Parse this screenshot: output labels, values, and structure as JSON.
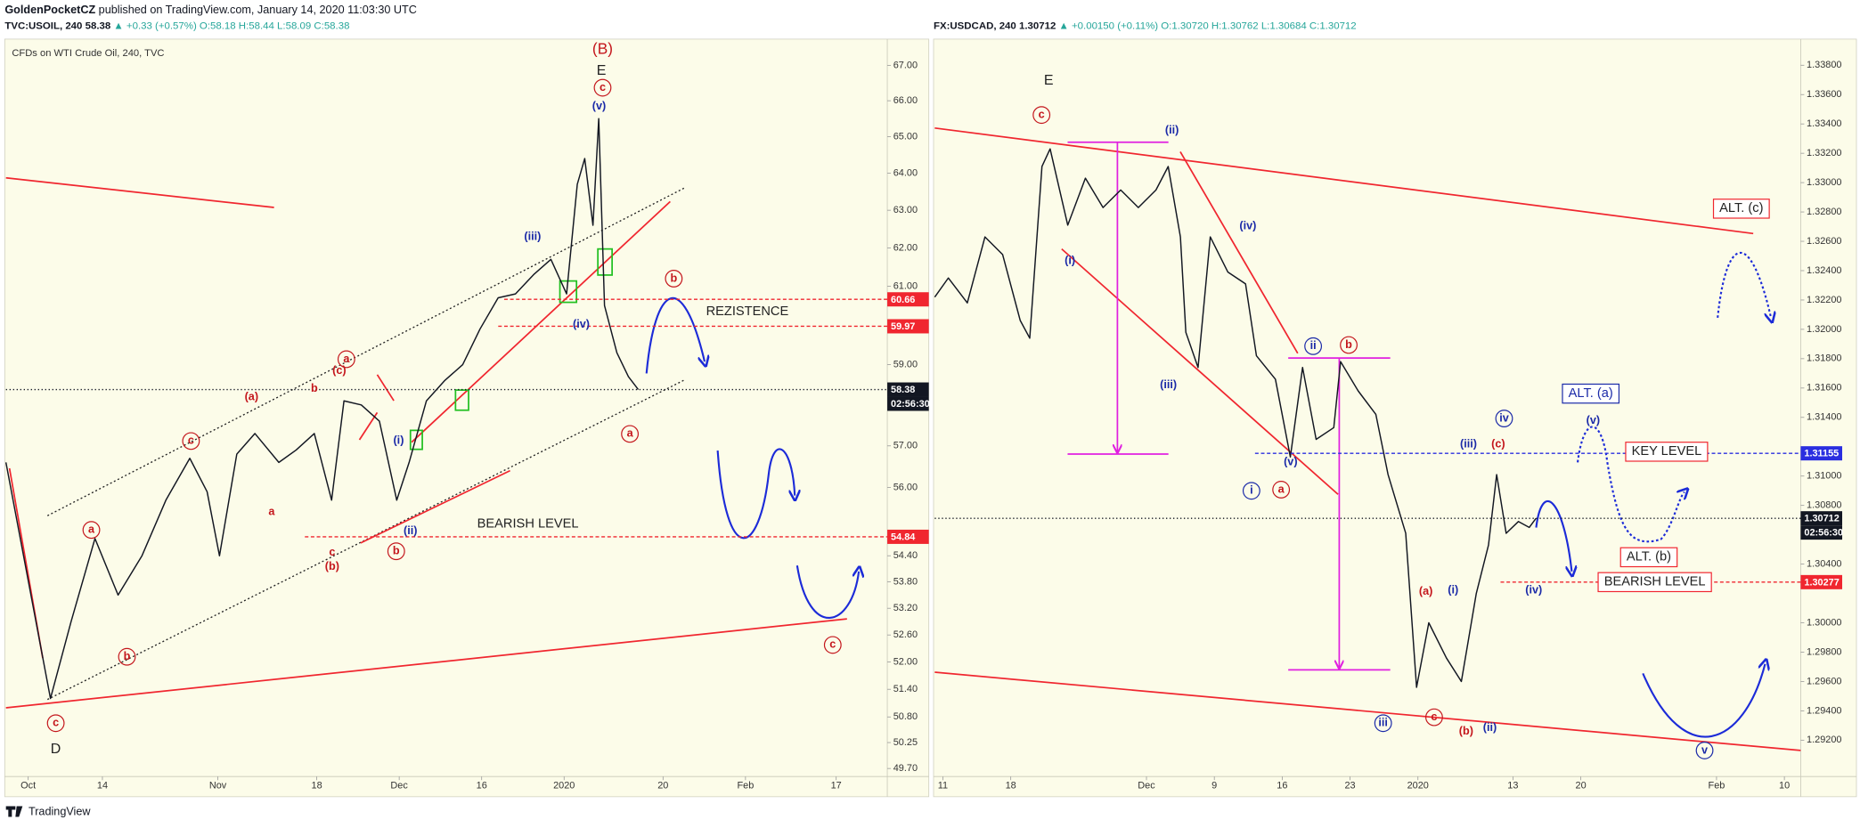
{
  "header": {
    "author": "GoldenPocketCZ",
    "published": "published on TradingView.com, January 14, 2020 11:03:30 UTC",
    "footer": "TradingView"
  },
  "chart_data": [
    {
      "type": "line",
      "symbol": "TVC:USOIL, 240",
      "last": "58.38",
      "change": "▲ +0.33 (+0.57%)",
      "ohlc": "O:58.18 H:58.44 L:58.09 C:58.38",
      "subtitle": "CFDs on WTI Crude Oil, 240, TVC",
      "log": true,
      "xlim": [
        -2.7,
        104.2
      ],
      "xticks": [
        {
          "value": 0,
          "label": "Oct"
        },
        {
          "value": 9,
          "label": "14"
        },
        {
          "value": 23,
          "label": "Nov"
        },
        {
          "value": 35,
          "label": "18"
        },
        {
          "value": 45,
          "label": "Dec"
        },
        {
          "value": 55,
          "label": "16"
        },
        {
          "value": 65,
          "label": "2020"
        },
        {
          "value": 77,
          "label": "20"
        },
        {
          "value": 87,
          "label": "Feb"
        },
        {
          "value": 98,
          "label": "17"
        }
      ],
      "ylim": [
        49.53,
        67.75
      ],
      "yticks": [
        {
          "value": 67,
          "label": "67.00"
        },
        {
          "value": 66,
          "label": "66.00"
        },
        {
          "value": 65,
          "label": "65.00"
        },
        {
          "value": 64,
          "label": "64.00"
        },
        {
          "value": 63,
          "label": "63.00"
        },
        {
          "value": 62,
          "label": "62.00"
        },
        {
          "value": 61,
          "label": "61.00"
        },
        {
          "value": 59,
          "label": "59.00"
        },
        {
          "value": 57,
          "label": "57.00"
        },
        {
          "value": 56,
          "label": "56.00"
        },
        {
          "value": 54.4,
          "label": "54.40"
        },
        {
          "value": 53.8,
          "label": "53.80"
        },
        {
          "value": 53.2,
          "label": "53.20"
        },
        {
          "value": 52.6,
          "label": "52.60"
        },
        {
          "value": 52,
          "label": "52.00"
        },
        {
          "value": 51.4,
          "label": "51.40"
        },
        {
          "value": 50.8,
          "label": "50.80"
        },
        {
          "value": 50.25,
          "label": "50.25"
        },
        {
          "value": 49.7,
          "label": "49.70"
        }
      ],
      "series": [
        {
          "color": "#131722",
          "x": [
            -2.7,
            2.7,
            5.2,
            8.1,
            10.9,
            13.8,
            16.7,
            19.6,
            21.7,
            23.2,
            25.3,
            27.5,
            30.4,
            32.5,
            34.7,
            36.8,
            38.3,
            40.4,
            42.6,
            44.7,
            46.2,
            48.3,
            50.5,
            52.7,
            54.8,
            57.0,
            59.1,
            61.3,
            63.4,
            65.3,
            66.6,
            67.5,
            68.5,
            69.2,
            69.9,
            71.4,
            72.8,
            74.0
          ],
          "values": [
            56.6,
            51.2,
            52.9,
            54.8,
            53.5,
            54.4,
            55.7,
            56.7,
            55.9,
            54.4,
            56.8,
            57.3,
            56.6,
            56.9,
            57.3,
            55.7,
            58.1,
            58.0,
            57.6,
            55.7,
            56.6,
            58.1,
            58.6,
            59.0,
            59.9,
            60.7,
            60.8,
            61.3,
            61.7,
            60.8,
            63.7,
            64.4,
            62.6,
            65.5,
            60.5,
            59.3,
            58.7,
            58.38
          ]
        }
      ],
      "price_tags": [
        {
          "value": 60.66,
          "color": "#f0262f"
        },
        {
          "value": 59.97,
          "color": "#f0262f"
        },
        {
          "value": 58.38,
          "color": "#131722"
        },
        {
          "value": 54.84,
          "color": "#f0262f"
        }
      ],
      "countdown": "02:56:30",
      "annotations": [
        "(B)",
        "E",
        "c",
        "(v)",
        "(iii)",
        "(iv)",
        "b",
        "a",
        "REZISTENCE",
        "BEARISH LEVEL",
        "(i)",
        "(ii)",
        "b",
        "a",
        "(c)",
        "b",
        "(a)",
        "c",
        "a",
        "a",
        "b",
        "c",
        "(b)",
        "c",
        "D",
        "c"
      ]
    },
    {
      "type": "line",
      "symbol": "FX:USDCAD, 240",
      "last": "1.30712",
      "change": "▲ +0.00150 (+0.11%)",
      "ohlc": "O:1.30720 H:1.30762 L:1.30684 C:1.30712",
      "log": false,
      "xlim": [
        -0.6,
        63.2
      ],
      "xticks": [
        {
          "value": 0,
          "label": "11"
        },
        {
          "value": 5,
          "label": "18"
        },
        {
          "value": 15,
          "label": "Dec"
        },
        {
          "value": 20,
          "label": "9"
        },
        {
          "value": 25,
          "label": "16"
        },
        {
          "value": 30,
          "label": "23"
        },
        {
          "value": 35,
          "label": "2020"
        },
        {
          "value": 42,
          "label": "13"
        },
        {
          "value": 47,
          "label": "20"
        },
        {
          "value": 57,
          "label": "Feb"
        },
        {
          "value": 62,
          "label": "10"
        }
      ],
      "ylim": [
        1.28952,
        1.33978
      ],
      "yticks": [
        {
          "value": 1.338,
          "label": "1.33800"
        },
        {
          "value": 1.336,
          "label": "1.33600"
        },
        {
          "value": 1.334,
          "label": "1.33400"
        },
        {
          "value": 1.332,
          "label": "1.33200"
        },
        {
          "value": 1.33,
          "label": "1.33000"
        },
        {
          "value": 1.328,
          "label": "1.32800"
        },
        {
          "value": 1.326,
          "label": "1.32600"
        },
        {
          "value": 1.324,
          "label": "1.32400"
        },
        {
          "value": 1.322,
          "label": "1.32200"
        },
        {
          "value": 1.32,
          "label": "1.32000"
        },
        {
          "value": 1.318,
          "label": "1.31800"
        },
        {
          "value": 1.316,
          "label": "1.31600"
        },
        {
          "value": 1.314,
          "label": "1.31400"
        },
        {
          "value": 1.31,
          "label": "1.31000"
        },
        {
          "value": 1.308,
          "label": "1.30800"
        },
        {
          "value": 1.304,
          "label": "1.30400"
        },
        {
          "value": 1.3,
          "label": "1.30000"
        },
        {
          "value": 1.298,
          "label": "1.29800"
        },
        {
          "value": 1.296,
          "label": "1.29600"
        },
        {
          "value": 1.294,
          "label": "1.29400"
        },
        {
          "value": 1.292,
          "label": "1.29200"
        }
      ],
      "series": [
        {
          "color": "#131722",
          "x": [
            -0.6,
            0.4,
            1.8,
            3.1,
            4.4,
            5.7,
            6.4,
            7.3,
            7.9,
            9.2,
            10.5,
            11.8,
            13.1,
            14.4,
            15.7,
            16.6,
            17.5,
            17.9,
            18.8,
            19.7,
            21.0,
            22.3,
            23.1,
            24.5,
            25.6,
            26.5,
            27.5,
            28.8,
            29.3,
            30.6,
            31.9,
            32.8,
            34.1,
            34.9,
            35.8,
            37.1,
            38.2,
            39.3,
            40.2,
            40.8,
            41.5,
            42.4,
            43.2,
            43.7
          ],
          "values": [
            1.3222,
            1.3235,
            1.3218,
            1.3263,
            1.3251,
            1.3206,
            1.3194,
            1.3311,
            1.3323,
            1.3271,
            1.3303,
            1.3283,
            1.3295,
            1.3283,
            1.3295,
            1.3311,
            1.3263,
            1.3198,
            1.3174,
            1.3263,
            1.3239,
            1.3231,
            1.3182,
            1.3166,
            1.3113,
            1.3174,
            1.3125,
            1.3133,
            1.3178,
            1.3158,
            1.3142,
            1.3101,
            1.3061,
            1.2956,
            1.3,
            1.2976,
            1.296,
            1.302,
            1.3053,
            1.3101,
            1.3061,
            1.3069,
            1.3065,
            1.30712
          ]
        }
      ],
      "price_tags": [
        {
          "value": 1.31155,
          "color": "#2a2ee0"
        },
        {
          "value": 1.30712,
          "color": "#131722"
        },
        {
          "value": 1.30277,
          "color": "#f0262f"
        }
      ],
      "countdown": "02:56:30",
      "annotations": [
        "E",
        "c",
        "(ii)",
        "(iv)",
        "(i)",
        "(iii)",
        "ii",
        "b",
        "(v)",
        "i",
        "a",
        "iv",
        "(iii)",
        "(c)",
        "(v)",
        "ALT. (a)",
        "KEY LEVEL",
        "ALT. (b)",
        "BEARISH LEVEL",
        "ALT. (c)",
        "(iv)",
        "(a)",
        "(i)",
        "iii",
        "c",
        "(b)",
        "(ii)",
        "v"
      ]
    }
  ]
}
